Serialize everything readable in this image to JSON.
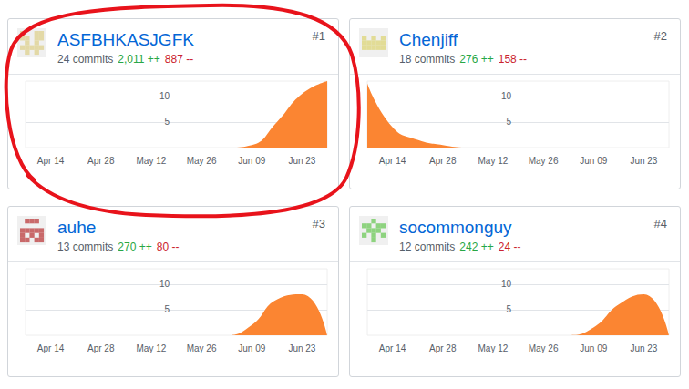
{
  "chart_data": [
    {
      "type": "area",
      "title": "ASFBHKASJGFK",
      "rank": "#1",
      "commits": "24 commits",
      "additions": "2,011 ++",
      "deletions": "887 --",
      "categories": [
        null,
        "Apr 14",
        null,
        "Apr 28",
        null,
        "May 12",
        null,
        "May 26",
        null,
        "Jun 09",
        null,
        "Jun 23",
        null
      ],
      "values": [
        0,
        0,
        0,
        0,
        0,
        0,
        0,
        0,
        0,
        0.5,
        5,
        10.5,
        13
      ],
      "color": "#fb8532",
      "ylim": [
        0,
        13
      ],
      "yticks": [
        5,
        10
      ],
      "grid": true
    },
    {
      "type": "area",
      "title": "Chenjiff",
      "rank": "#2",
      "commits": "18 commits",
      "additions": "276 ++",
      "deletions": "158 --",
      "categories": [
        null,
        "Apr 14",
        null,
        "Apr 28",
        null,
        "May 12",
        null,
        "May 26",
        null,
        "Jun 09",
        null,
        "Jun 23",
        null
      ],
      "values": [
        12.5,
        4,
        1.5,
        0.5,
        0,
        0,
        0,
        0,
        0,
        0,
        0,
        0,
        0
      ],
      "color": "#fb8532",
      "ylim": [
        0,
        13
      ],
      "yticks": [
        5,
        10
      ],
      "grid": true
    },
    {
      "type": "area",
      "title": "auhe",
      "rank": "#3",
      "commits": "13 commits",
      "additions": "270 ++",
      "deletions": "80 --",
      "categories": [
        null,
        "Apr 14",
        null,
        "Apr 28",
        null,
        "May 12",
        null,
        "May 26",
        null,
        "Jun 09",
        null,
        "Jun 23",
        null
      ],
      "values": [
        0,
        0,
        0,
        0,
        0,
        0,
        0,
        0,
        0,
        2,
        7,
        8,
        0
      ],
      "color": "#fb8532",
      "ylim": [
        0,
        13
      ],
      "yticks": [
        5,
        10
      ],
      "grid": true
    },
    {
      "type": "area",
      "title": "socommonguy",
      "rank": "#4",
      "commits": "12 commits",
      "additions": "242 ++",
      "deletions": "24 --",
      "categories": [
        null,
        "Apr 14",
        null,
        "Apr 28",
        null,
        "May 12",
        null,
        "May 26",
        null,
        "Jun 09",
        null,
        "Jun 23",
        null
      ],
      "values": [
        0,
        0,
        0,
        0,
        0,
        0,
        0,
        0,
        0,
        1.5,
        6,
        8,
        0
      ],
      "color": "#fb8532",
      "ylim": [
        0,
        13
      ],
      "yticks": [
        5,
        10
      ],
      "grid": true
    }
  ]
}
